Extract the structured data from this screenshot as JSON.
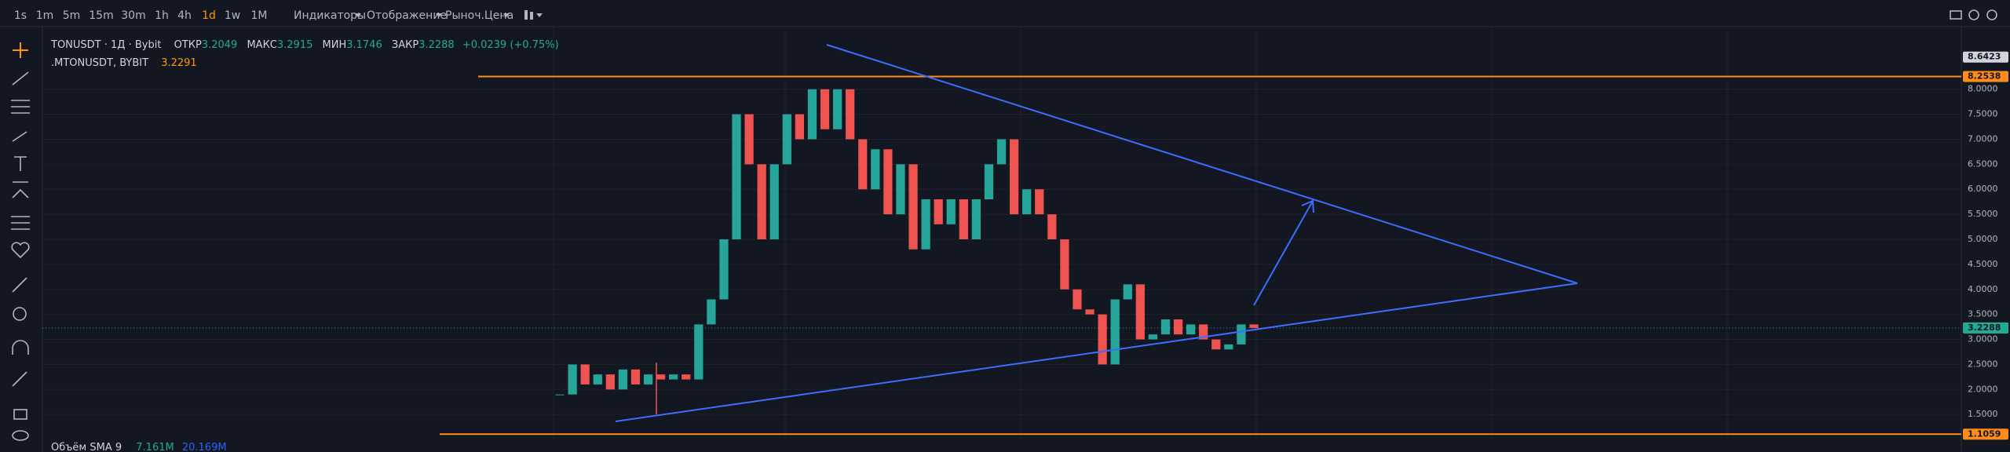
{
  "toolbar": {
    "timeframes": [
      "1s",
      "1m",
      "5m",
      "15m",
      "30m",
      "1h",
      "4h",
      "1d",
      "1w",
      "1M"
    ],
    "active": "1d",
    "menus": [
      "Индикаторы",
      "Отображение",
      "Рыноч.Цена"
    ]
  },
  "legend": {
    "symbol": "TONUSDT · 1Д · Bybit",
    "open_label": "ОТКР",
    "open": "3.2049",
    "high_label": "МАКС",
    "high": "3.2915",
    "low_label": "МИН",
    "low": "3.1746",
    "close_label": "ЗАКР",
    "close": "3.2288",
    "change": "+0.0239 (+0.75%)",
    "index_symbol": ".MTONUSDT, BYBIT",
    "index_value": "3.2291"
  },
  "volume": {
    "label": "Объём SMA 9",
    "value1": "7.161M",
    "value2": "20.169M"
  },
  "chart_data": {
    "type": "candlestick",
    "closes": [
      1.9,
      2.5,
      2.1,
      2.3,
      2.0,
      2.4,
      2.1,
      2.3,
      2.2,
      2.3,
      2.2,
      3.3,
      3.8,
      5.0,
      7.5,
      6.5,
      5.0,
      6.5,
      7.5,
      7.0,
      8.0,
      7.2,
      8.0,
      7.0,
      6.0,
      6.8,
      5.5,
      6.5,
      4.8,
      5.8,
      5.3,
      5.8,
      5.0,
      5.8,
      6.5,
      7.0,
      5.5,
      6.0,
      5.5,
      5.0,
      4.0,
      3.6,
      3.5,
      2.5,
      3.8,
      4.1,
      3.0,
      3.1,
      3.4,
      3.1,
      3.3,
      3.0,
      2.8,
      2.9,
      3.3,
      3.2288
    ],
    "up_color": "#26a69a",
    "down_color": "#ef5350",
    "ylim": [
      0.75,
      9.25
    ],
    "yticks": [
      {
        "value": 8,
        "label": "8.0000"
      },
      {
        "value": 7.5,
        "label": "7.5000"
      },
      {
        "value": 7,
        "label": "7.0000"
      },
      {
        "value": 6.5,
        "label": "6.5000"
      },
      {
        "value": 6,
        "label": "6.0000"
      },
      {
        "value": 5.5,
        "label": "5.5000"
      },
      {
        "value": 5,
        "label": "5.0000"
      },
      {
        "value": 4.5,
        "label": "4.5000"
      },
      {
        "value": 4,
        "label": "4.0000"
      },
      {
        "value": 3.5,
        "label": "3.5000"
      },
      {
        "value": 3,
        "label": "3.0000"
      },
      {
        "value": 2.5,
        "label": "2.5000"
      },
      {
        "value": 2,
        "label": "2.0000"
      },
      {
        "value": 1.5,
        "label": "1.5000"
      }
    ],
    "badges": [
      {
        "value": 8.6423,
        "color": "#d1d4dc"
      },
      {
        "value": 8.2538,
        "color": "#ff8c1a"
      },
      {
        "value": 3.2291,
        "color": "#ff9800"
      },
      {
        "value": 3.2288,
        "color": "#22ab94"
      },
      {
        "value": 1.1059,
        "color": "#ff8c1a"
      }
    ],
    "hlines": [
      {
        "value": 8.2538,
        "color": "#ff8c1a"
      },
      {
        "value": 1.1059,
        "color": "#ff8c1a"
      }
    ]
  }
}
